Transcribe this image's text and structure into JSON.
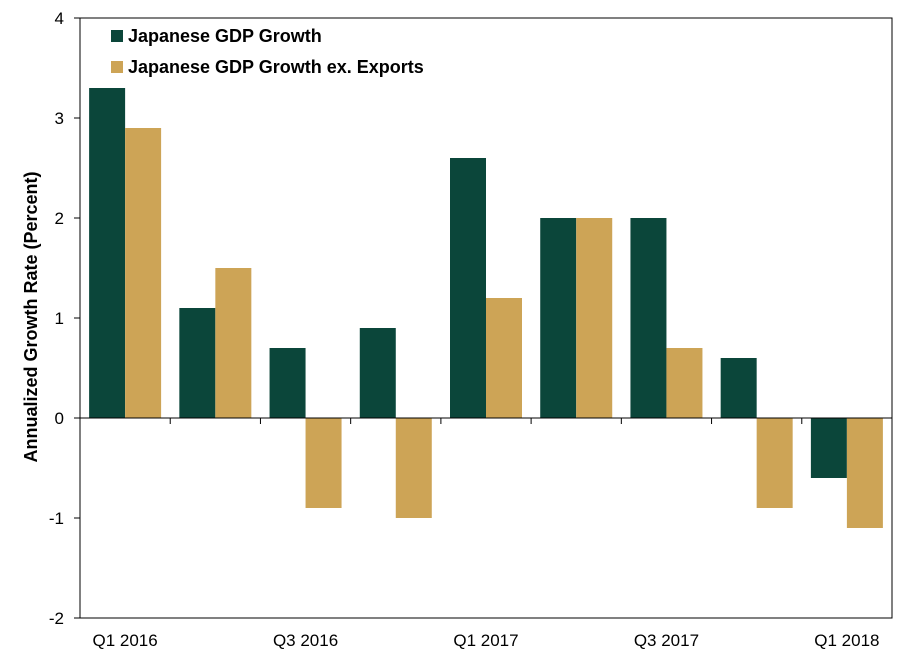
{
  "chart_data": {
    "type": "bar",
    "title": "",
    "xlabel": "",
    "ylabel": "Annualized  Growth Rate (Percent)",
    "ylim": [
      -2,
      4
    ],
    "yticks": [
      4,
      3,
      2,
      1,
      0,
      -1,
      -2
    ],
    "grid": false,
    "legend_position": "top-left",
    "categories": [
      "Q1 2016",
      "Q2 2016",
      "Q3 2016",
      "Q4 2016",
      "Q1 2017",
      "Q2 2017",
      "Q3 2017",
      "Q4 2017",
      "Q1 2018"
    ],
    "category_labels": [
      "Q1 2016",
      "",
      "Q3 2016",
      "",
      "Q1 2017",
      "",
      "Q3 2017",
      "",
      "Q1 2018"
    ],
    "series": [
      {
        "name": "Japanese GDP Growth",
        "color": "#0b463a",
        "values": [
          3.3,
          1.1,
          0.7,
          0.9,
          2.6,
          2.0,
          2.0,
          0.6,
          -0.6
        ]
      },
      {
        "name": "Japanese GDP Growth ex. Exports",
        "color": "#cda456",
        "values": [
          2.9,
          1.5,
          -0.9,
          -1.0,
          1.2,
          2.0,
          0.7,
          -0.9,
          -1.1
        ]
      }
    ]
  }
}
